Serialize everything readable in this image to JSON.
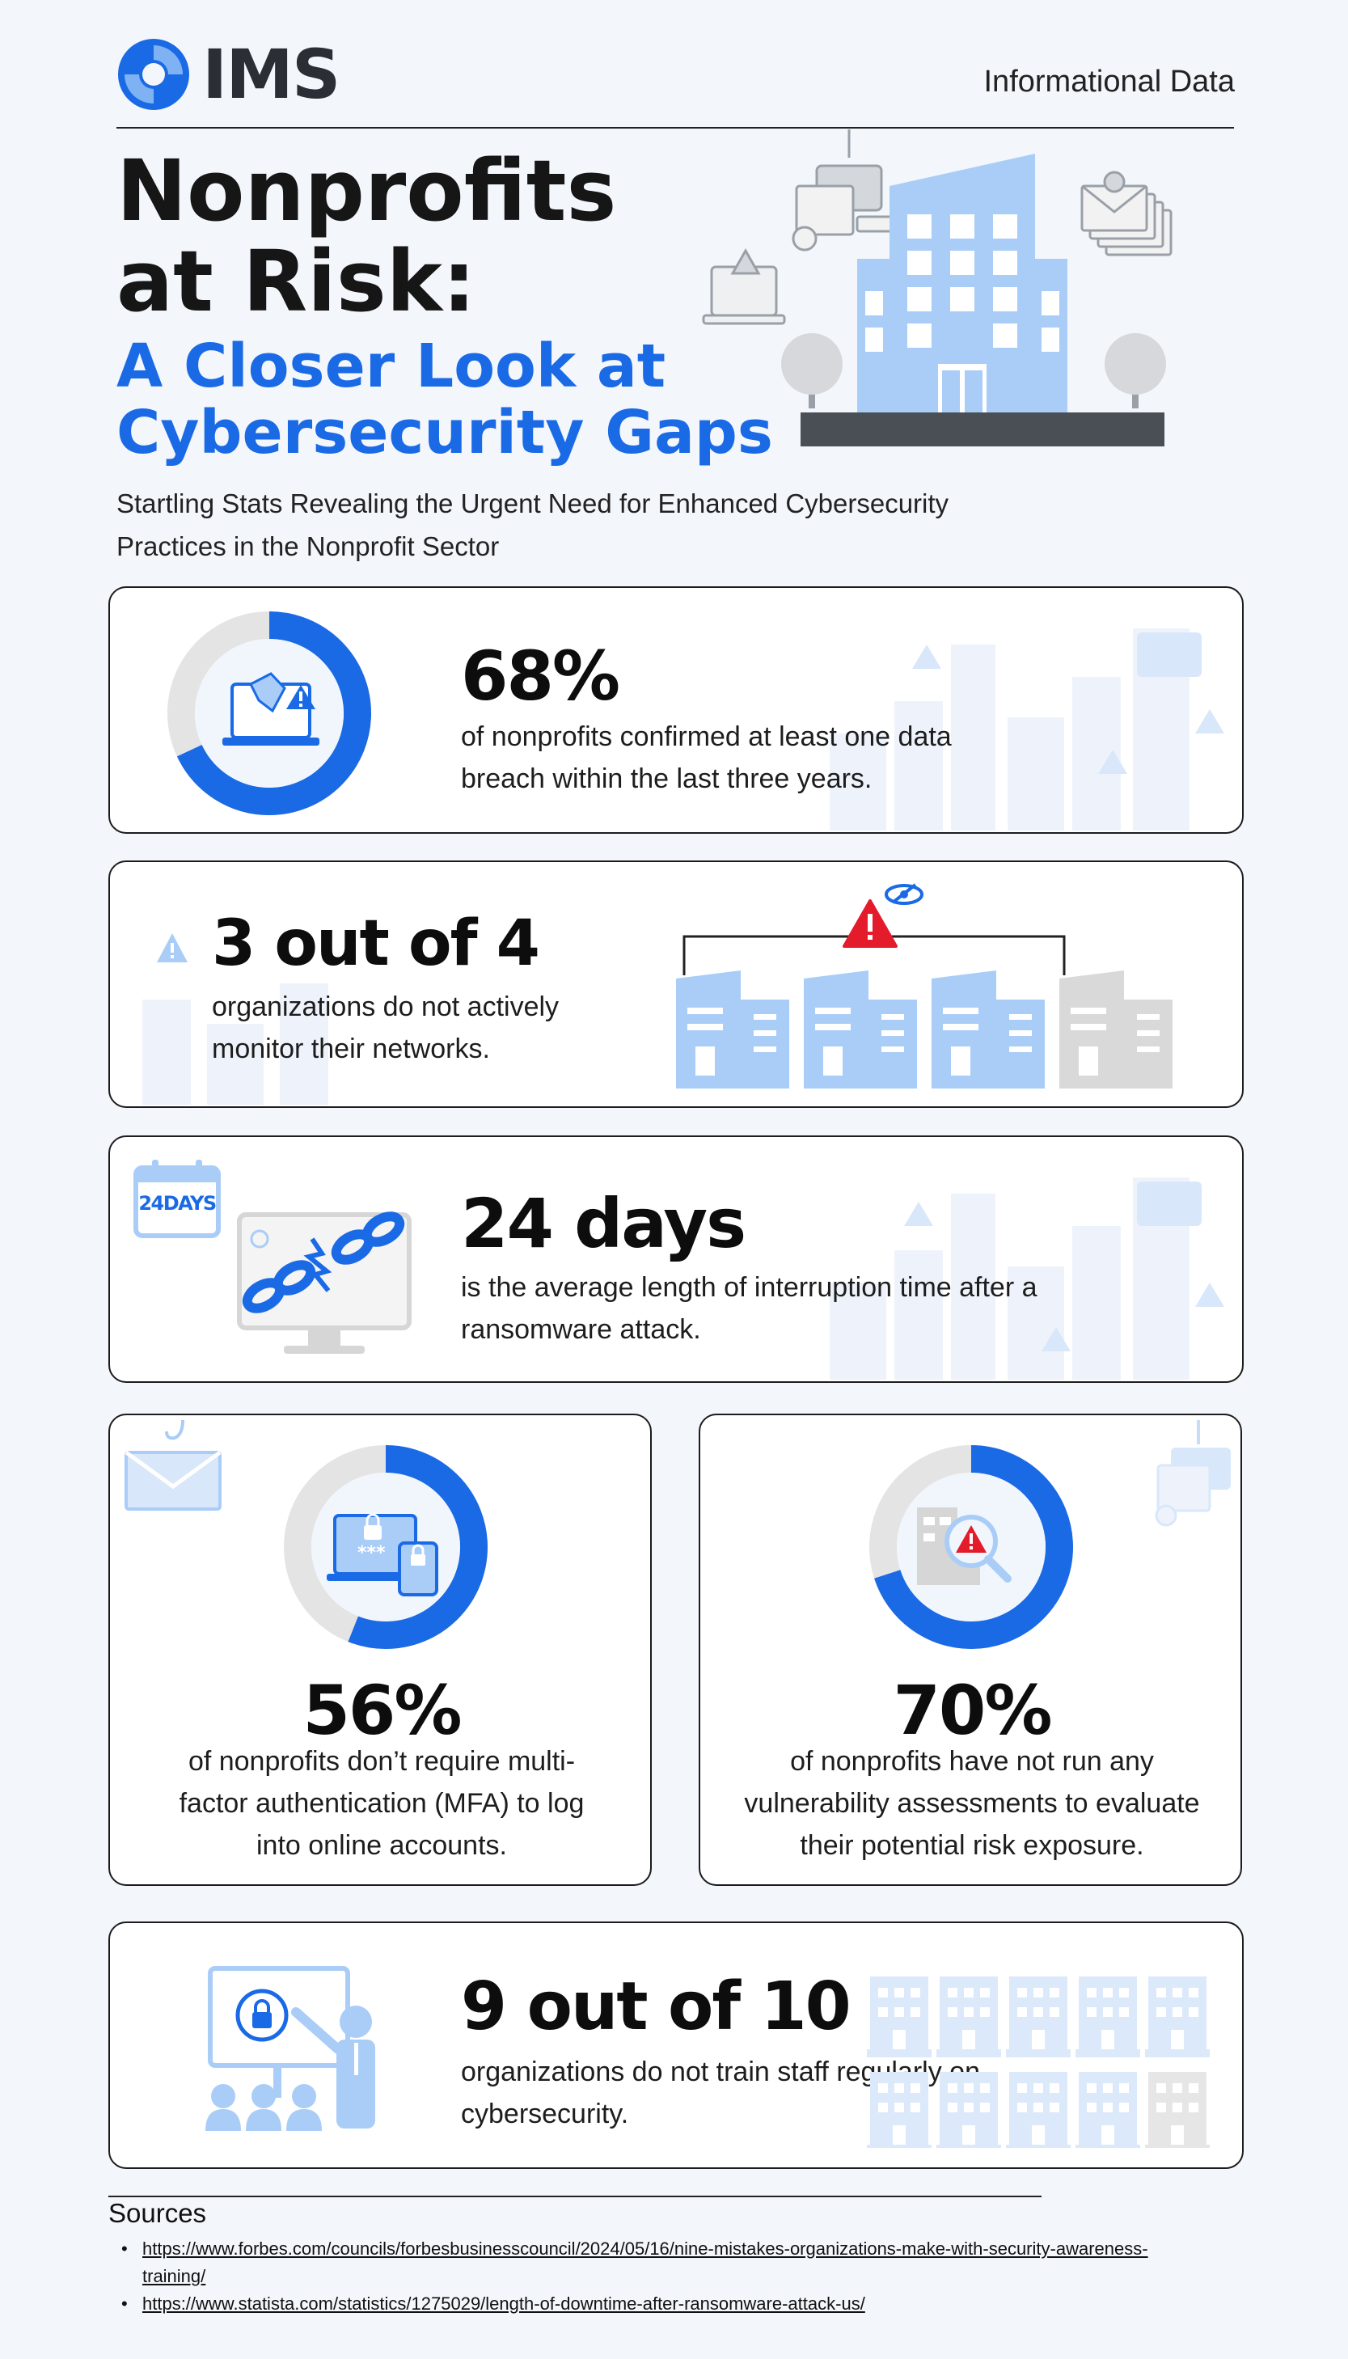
{
  "header": {
    "logo_text": "IMS",
    "tagline": "Informational Data"
  },
  "hero": {
    "title_line1": "Nonprofits",
    "title_line2": "at Risk:",
    "subtitle_line1": "A Closer Look at",
    "subtitle_line2": "Cybersecurity Gaps",
    "intro": "Startling Stats Revealing the Urgent Need for Enhanced Cybersecurity Practices in the Nonprofit Sector"
  },
  "stats": {
    "breach": {
      "value": "68%",
      "text": "of nonprofits confirmed at least one data breach within the last three years.",
      "fraction": 0.68
    },
    "monitor": {
      "value": "3 out of 4",
      "text": "organizations do not actively monitor their networks."
    },
    "downtime": {
      "value": "24 days",
      "text": "is the average length of interruption time after a ransomware attack.",
      "calendar_label": "24DAYS"
    },
    "mfa": {
      "value": "56%",
      "text": "of nonprofits don’t require multi-factor authentication (MFA) to log into online accounts.",
      "fraction": 0.56
    },
    "vuln": {
      "value": "70%",
      "text": "of nonprofits have not run any vulnerability assessments to evaluate their potential risk exposure.",
      "fraction": 0.7
    },
    "training": {
      "value": "9 out of 10",
      "text": "organizations do not train staff regularly on cybersecurity."
    }
  },
  "sources": {
    "title": "Sources",
    "items": [
      "https://www.forbes.com/councils/forbesbusinesscouncil/2024/05/16/nine-mistakes-organizations-make-with-security-awareness-training/",
      "https://www.statista.com/statistics/1275029/length-of-downtime-after-ransomware-attack-us/"
    ]
  },
  "colors": {
    "accent": "#1a6ae6",
    "light_blue": "#a9cdf7",
    "grey": "#e4e4e4",
    "alert_red": "#e31b2b"
  }
}
